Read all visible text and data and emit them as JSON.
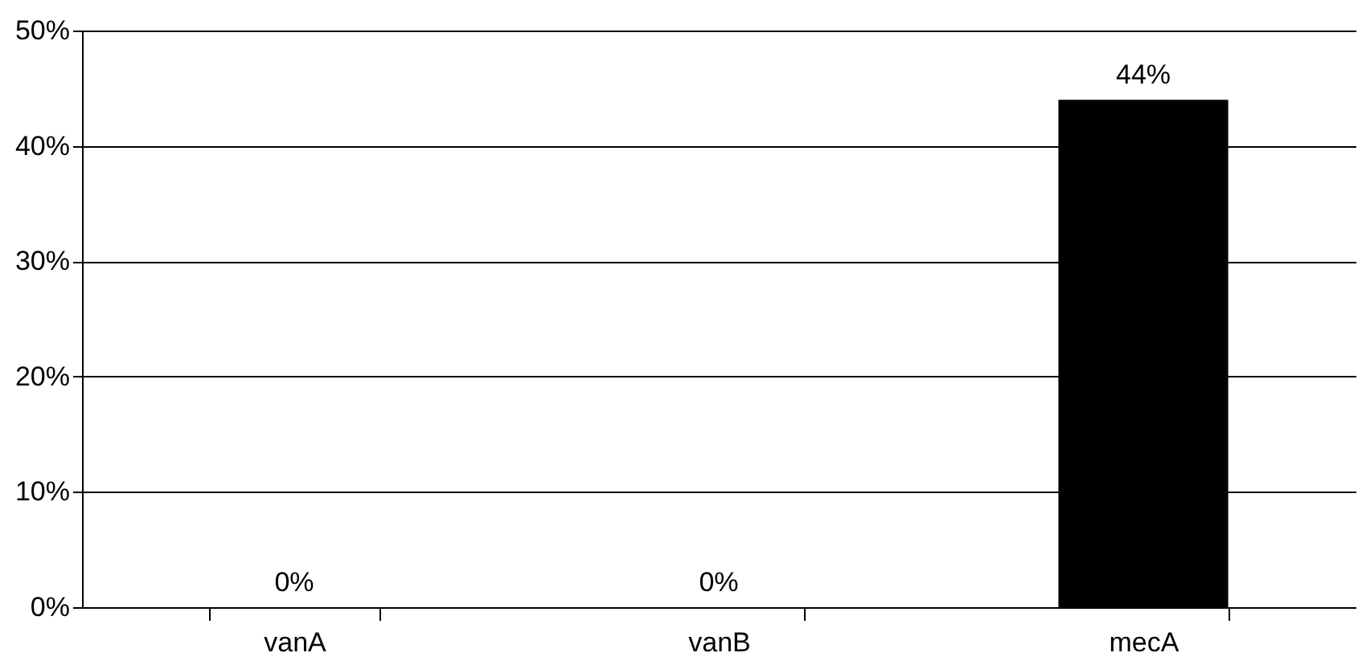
{
  "chart_data": {
    "type": "bar",
    "categories": [
      "vanA",
      "vanB",
      "mecA"
    ],
    "values": [
      0,
      0,
      44
    ],
    "value_labels": [
      "0%",
      "0%",
      "44%"
    ],
    "color": "#000000",
    "ylim": [
      0,
      50
    ],
    "yticks": [
      {
        "value": 0,
        "label": "0%"
      },
      {
        "value": 10,
        "label": "10%"
      },
      {
        "value": 20,
        "label": "20%"
      },
      {
        "value": 30,
        "label": "30%"
      },
      {
        "value": 40,
        "label": "40%"
      },
      {
        "value": 50,
        "label": "50%"
      }
    ],
    "grid": "y"
  }
}
